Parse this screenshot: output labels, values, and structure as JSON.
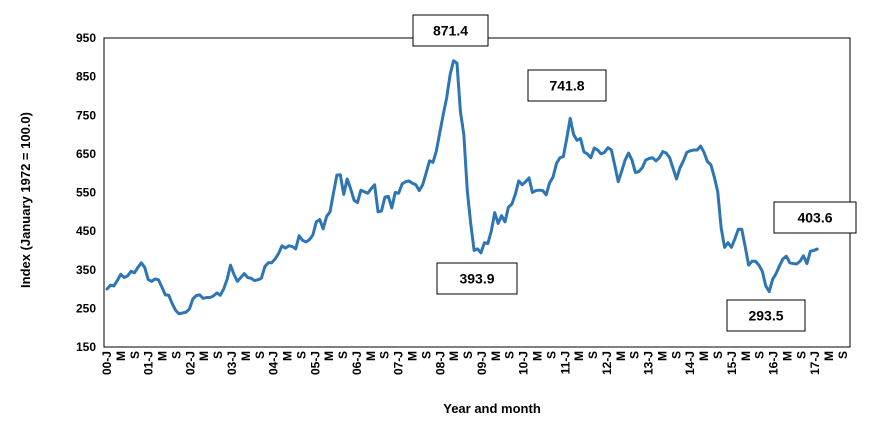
{
  "chart_data": {
    "type": "line",
    "title": "",
    "xlabel": "Year and month",
    "ylabel": "Index (January 1972 = 100.0)",
    "ylim": [
      150,
      950
    ],
    "y_ticks": [
      150,
      250,
      350,
      450,
      550,
      650,
      750,
      850,
      950
    ],
    "x_ticks": [
      "00-J",
      "M",
      "S",
      "01-J",
      "M",
      "S",
      "02-J",
      "M",
      "S",
      "03-J",
      "M",
      "S",
      "04-J",
      "M",
      "S",
      "05-J",
      "M",
      "S",
      "06-J",
      "M",
      "S",
      "07-J",
      "M",
      "S",
      "08-J",
      "M",
      "S",
      "09-J",
      "M",
      "S",
      "10-J",
      "M",
      "S",
      "11-J",
      "M",
      "S",
      "12-J",
      "M",
      "S",
      "13-J",
      "M",
      "S",
      "14-J",
      "M",
      "S",
      "15-J",
      "M",
      "S",
      "16-J",
      "M",
      "S",
      "17-J",
      "M",
      "S"
    ],
    "grid": false,
    "legend": "none",
    "line_color": "#2E75B6",
    "series": [
      {
        "values": [
          300,
          310,
          308,
          322,
          338,
          330,
          334,
          346,
          342,
          356,
          368,
          356,
          325,
          320,
          326,
          324,
          305,
          285,
          284,
          262,
          245,
          236,
          238,
          240,
          248,
          274,
          283,
          285,
          276,
          278,
          278,
          282,
          290,
          284,
          300,
          325,
          362,
          338,
          320,
          330,
          340,
          330,
          328,
          322,
          324,
          328,
          358,
          368,
          368,
          378,
          392,
          412,
          406,
          412,
          410,
          404,
          438,
          426,
          422,
          428,
          440,
          474,
          480,
          456,
          488,
          500,
          548,
          595,
          596,
          545,
          585,
          560,
          530,
          524,
          556,
          552,
          548,
          560,
          570,
          500,
          502,
          538,
          540,
          510,
          550,
          548,
          572,
          578,
          580,
          574,
          570,
          555,
          570,
          600,
          632,
          628,
          658,
          705,
          752,
          795,
          855,
          891,
          885,
          760,
          700,
          555,
          470,
          400,
          404,
          394,
          420,
          418,
          450,
          498,
          470,
          490,
          474,
          512,
          520,
          545,
          580,
          570,
          578,
          588,
          550,
          555,
          556,
          555,
          544,
          575,
          590,
          625,
          640,
          643,
          690,
          742,
          700,
          685,
          690,
          655,
          650,
          640,
          665,
          660,
          650,
          654,
          666,
          660,
          620,
          578,
          605,
          634,
          652,
          634,
          602,
          604,
          614,
          634,
          638,
          640,
          632,
          640,
          656,
          652,
          640,
          612,
          585,
          614,
          632,
          654,
          658,
          660,
          660,
          670,
          654,
          630,
          622,
          590,
          552,
          458,
          408,
          420,
          408,
          430,
          455,
          455,
          410,
          362,
          372,
          372,
          362,
          346,
          308,
          293.5,
          325,
          340,
          360,
          378,
          385,
          368,
          366,
          365,
          372,
          386,
          366,
          398,
          400,
          403.6
        ]
      }
    ],
    "annotations": [
      {
        "label": "871.4",
        "value": 871.4
      },
      {
        "label": "393.9",
        "value": 393.9
      },
      {
        "label": "741.8",
        "value": 741.8
      },
      {
        "label": "293.5",
        "value": 293.5
      },
      {
        "label": "403.6",
        "value": 403.6
      }
    ]
  }
}
